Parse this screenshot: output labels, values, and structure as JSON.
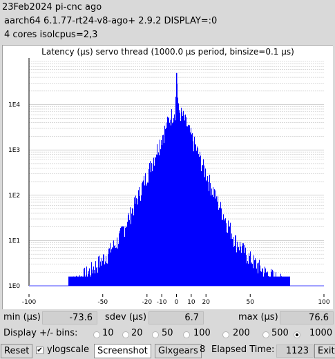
{
  "header": {
    "line1": "23Feb2024 pi-cnc ago",
    "line2": "aarch64  6.1.77-rt24-v8-ago+  2.9.2  DISPLAY=:0",
    "line3": "4 cores  isolcpus=2,3"
  },
  "chart_data": {
    "type": "bar",
    "title": "Latency (µs) servo thread (1000.0 µs period, binsize=0.1 µs)",
    "x_ticks": [
      "-100",
      "-50",
      "-20",
      "-10",
      "0",
      "10",
      "20",
      "50",
      "100"
    ],
    "x_tick_values": [
      -100,
      -50,
      -20,
      -10,
      0,
      10,
      20,
      50,
      100
    ],
    "y_ticks": [
      "1E0",
      "1E1",
      "1E2",
      "1E3",
      "1E4"
    ],
    "y_scale": "log",
    "ylim": [
      1,
      100000
    ],
    "xlim": [
      -100,
      100
    ],
    "color": "#0000ff",
    "grid": true,
    "peak": {
      "x": 0,
      "count": 50000
    },
    "shape_samples": [
      {
        "x": -73.6,
        "count": 1
      },
      {
        "x": -60,
        "count": 2
      },
      {
        "x": -50,
        "count": 4
      },
      {
        "x": -40,
        "count": 10
      },
      {
        "x": -30,
        "count": 50
      },
      {
        "x": -20,
        "count": 300
      },
      {
        "x": -10,
        "count": 2000
      },
      {
        "x": -5,
        "count": 5000
      },
      {
        "x": -1,
        "count": 8000
      },
      {
        "x": 0,
        "count": 50000
      },
      {
        "x": 1,
        "count": 8000
      },
      {
        "x": 5,
        "count": 5000
      },
      {
        "x": 10,
        "count": 2000
      },
      {
        "x": 20,
        "count": 300
      },
      {
        "x": 30,
        "count": 50
      },
      {
        "x": 40,
        "count": 10
      },
      {
        "x": 50,
        "count": 4
      },
      {
        "x": 60,
        "count": 2
      },
      {
        "x": 76.6,
        "count": 1
      }
    ]
  },
  "stats": {
    "min_label": "min (µs)",
    "min_value": "-73.6",
    "sdev_label": "sdev (µs)",
    "sdev_value": "6.7",
    "max_label": "max (µs)",
    "max_value": "76.6"
  },
  "bins": {
    "label": "Display +/- bins:",
    "options": [
      "10",
      "20",
      "50",
      "100",
      "200",
      "500",
      "1000"
    ],
    "selected": "1000"
  },
  "toolbar": {
    "reset": "Reset",
    "ylogscale": "ylogscale",
    "ylogscale_checked": true,
    "check_mark": "✔",
    "screenshot": "Screenshot",
    "glxgears": "Glxgears",
    "glxgears_count": "8",
    "elapsed_label": "Elapsed Time:",
    "elapsed_value": "1123",
    "exit": "Exit"
  }
}
